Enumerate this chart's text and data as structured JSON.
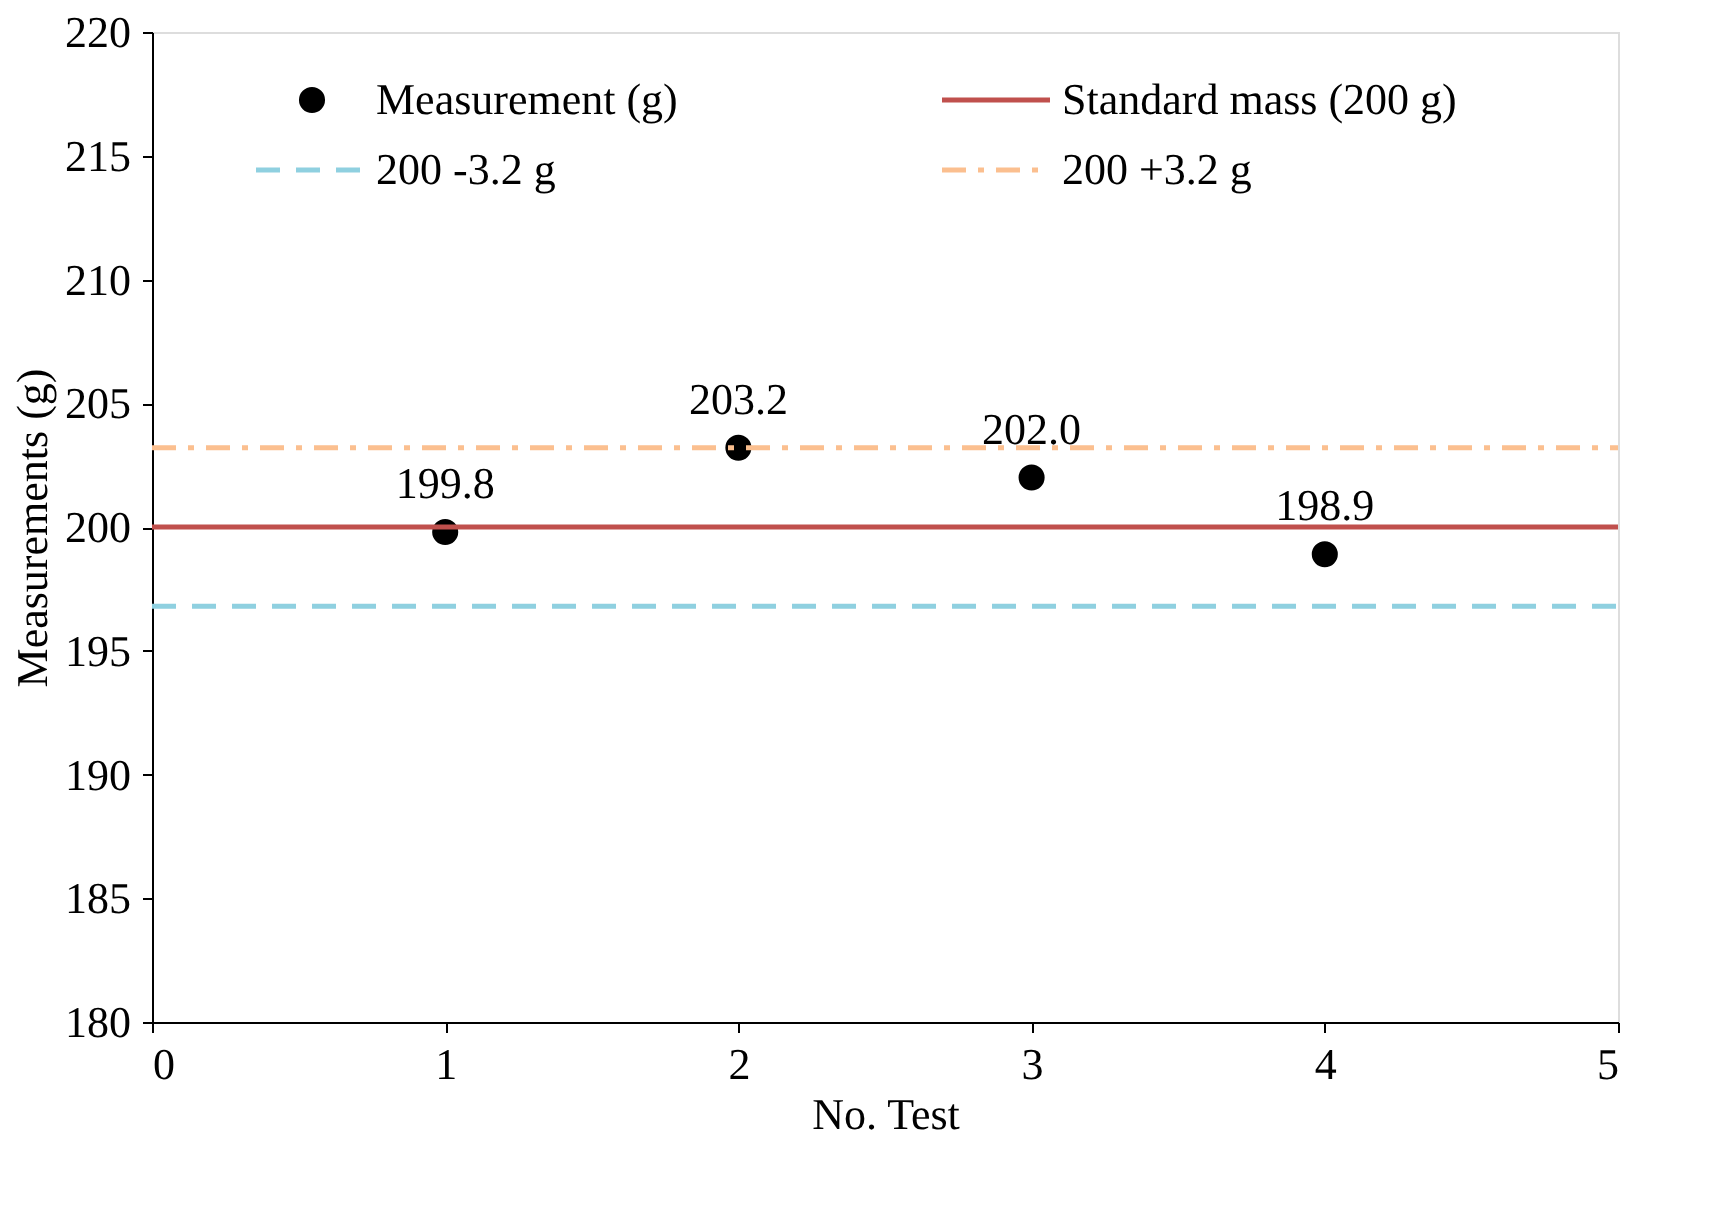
{
  "chart_data": {
    "type": "scatter",
    "xlabel": "No. Test",
    "ylabel": "Measurements (g)",
    "xlim": [
      0,
      5
    ],
    "xticks": [
      0,
      1,
      2,
      3,
      4,
      5
    ],
    "ylim": [
      180,
      220
    ],
    "yticks": [
      180,
      185,
      190,
      195,
      200,
      205,
      210,
      215,
      220
    ],
    "grid": false,
    "legend": "top",
    "series": [
      {
        "name": "Measurement (g)",
        "marker": "circle",
        "color": "#000000",
        "x": [
          1,
          2,
          3,
          4
        ],
        "values": [
          199.8,
          203.2,
          202.0,
          198.9
        ],
        "value_labels": [
          "199.8",
          "203.2",
          "202.0",
          "198.9"
        ]
      },
      {
        "name": "Standard mass (200 g)",
        "type": "line",
        "color": "#c0504d",
        "line_style": "solid",
        "x": [
          0,
          5
        ],
        "values": [
          200,
          200
        ]
      },
      {
        "name": "200 -3.2 g",
        "type": "line",
        "color": "#8fd0e0",
        "line_style": "dashed",
        "x": [
          0,
          5
        ],
        "values": [
          196.8,
          196.8
        ]
      },
      {
        "name": "200 +3.2 g",
        "type": "line",
        "color": "#fbbf8f",
        "line_style": "dashdot",
        "x": [
          0,
          5
        ],
        "values": [
          203.2,
          203.2
        ]
      }
    ]
  }
}
